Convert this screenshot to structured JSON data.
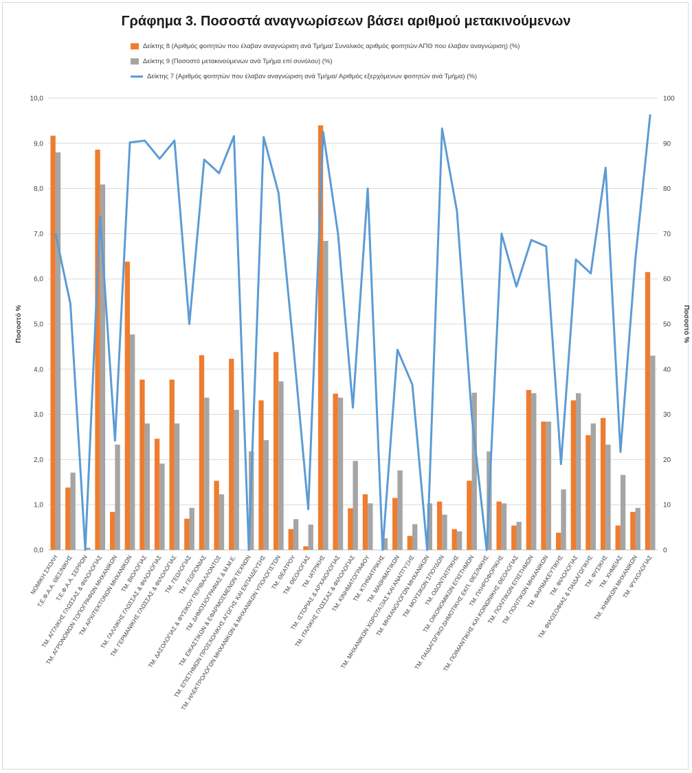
{
  "colors": {
    "ind8": "#ed7d31",
    "ind9": "#a5a5a5",
    "ind7": "#5b9bd5",
    "grid": "#d9d9d9"
  },
  "chart_data": {
    "type": "bar",
    "title": "Γράφημα 3. Ποσοστά αναγνωρίσεων βάσει αριθμού μετακινούμενων",
    "ylabel": "Ποσοστό %",
    "y2label": "Ποσοστό %",
    "ylim": [
      0,
      10
    ],
    "y2lim": [
      0,
      100
    ],
    "yticks": [
      "0,0",
      "1,0",
      "2,0",
      "3,0",
      "4,0",
      "5,0",
      "6,0",
      "7,0",
      "8,0",
      "9,0",
      "10,0"
    ],
    "y2ticks": [
      "0",
      "10",
      "20",
      "30",
      "40",
      "50",
      "60",
      "70",
      "80",
      "90",
      "100"
    ],
    "grid": true,
    "legend_position": "top",
    "categories": [
      "ΝΟΜΙΚΗ ΣΧΟΛΗ",
      "Τ.Ε.Φ.Α.Α. ΘΕΣ/ΝΙΚΗΣ",
      "Τ.Ε.Φ.Α.Α. ΣΕΡΡΩΝ",
      "ΤΜ. ΑΓΓΛΙΚΗΣ ΓΛΩΣΣΑΣ & ΦΙΛΟΛΟΓΙΑΣ",
      "ΤΜ. ΑΓΡΟΝΟΜΩΝ ΤΟΠΟΓΡΑΦΩΝ ΜΗΧΑΝΙΚΩΝ",
      "ΤΜ. ΑΡΧΙΤΕΚΤΟΝΩΝ ΜΗΧΑΝΙΚΩΝ",
      "ΤΜ. ΒΙΟΛΟΓΙΑΣ",
      "ΤΜ. ΓΑΛΛΙΚΗΣ ΓΛΩΣΣΑΣ & ΦΙΛΟΛΟΓΙΑΣ",
      "ΤΜ. ΓΕΡΜΑΝΙΚΗΣ ΓΛΩΣΣΑΣ & ΦΙΛΟΛΟΓΙΑΣ",
      "ΤΜ. ΓΕΩΛΟΓΙΑΣ",
      "ΤΜ. ΓΕΩΠΟΝΙΑΣ",
      "ΤΜ. ΔΑΣΟΛΟΓΙΑΣ & ΦΥΣΙΚΟΥ ΠΕΡΙΒΑΛΛΟΝΤΟΣ",
      "ΤΜ. ΔΗΜΟΣΙΟΓΡΑΦΙΑΣ & Μ.Μ.Ε.",
      "ΤΜ. ΕΙΚΑΣΤΙΚΩΝ & ΕΦΑΡΜΟΣΜΕΝΩΝ ΤΕΧΝΩΝ",
      "ΤΜ. ΕΠΙΣΤΗΜΩΝ ΠΡΟΣΧΟΛΙΚΗΣ ΑΓΩΓΗΣ ΚΑΙ ΕΚΠΑΙΔΕΥΣΗΣ",
      "ΤΜ. ΗΛΕΚΤΡΟΛΟΓΩΝ ΜΗΧΑΝΙΚΩΝ & ΜΗΧΑΝΙΚΩΝ ΥΠΟΛΟΓΙΣΤΩΝ",
      "ΤΜ. ΘΕΑΤΡΟΥ",
      "ΤΜ. ΘΕΟΛΟΓΙΑΣ",
      "ΤΜ. ΙΑΤΡΙΚΗΣ",
      "ΤΜ. ΙΣΤΟΡΙΑΣ & ΑΡΧΑΙΟΛΟΓΙΑΣ",
      "ΤΜ. ΙΤΑΛΙΚΗΣ ΓΛΩΣΣΑΣ & ΦΙΛΟΛΟΓΙΑΣ",
      "ΤΜ. ΚΙΝΗΜΑΤΟΓΡΑΦΟΥ",
      "ΤΜ. ΚΤΗΝΙΑΤΡΙΚΗΣ",
      "ΤΜ. ΜΑΘΗΜΑΤΙΚΩΝ",
      "ΤΜ. ΜΗΧΑΝΙΚΩΝ ΧΩΡΟΤΑΞΙΑΣ ΚΑΙ ΑΝΑΠΤΥΞΗΣ",
      "ΤΜ. ΜΗΧΑΝΟΛΟΓΩΝ ΜΗΧΑΝΙΚΩΝ",
      "ΤΜ. ΜΟΥΣΙΚΩΝ ΣΠΟΥΔΩΝ",
      "ΤΜ. ΟΔΟΝΤΙΑΤΡΙΚΗΣ",
      "ΤΜ. ΟΙΚΟΝΟΜΙΚΩΝ ΕΠΙΣΤΗΜΩΝ",
      "ΤΜ. ΠΑΙΔΑΓΩΓΙΚΟ ΔΗΜΟΤΙΚΗΣ ΕΚΠ. ΘΕΣ/ΝΙΚΗΣ",
      "ΤΜ. ΠΛΗΡΟΦΟΡΙΚΗΣ",
      "ΤΜ. ΠΟΙΜΑΝΤΙΚΗΣ ΚΑΙ ΚΟΙΝΩΝΙΚΗΣ ΘΕΟΛΟΓΙΑΣ",
      "ΤΜ. ΠΟΛΙΤΙΚΩΝ ΕΠΙΣΤΗΜΩΝ",
      "ΤΜ. ΠΟΛΙΤΙΚΩΝ ΜΗΧΑΝΙΚΩΝ",
      "ΤΜ. ΦΑΡΜΑΚΕΥΤΙΚΗΣ",
      "ΤΜ. ΦΙΛΟΛΟΓΙΑΣ",
      "ΤΜ. ΦΙΛΟΣΟΦΙΑΣ & ΠΑΙΔΑΓΩΓΙΚΗΣ",
      "ΤΜ. ΦΥΣΙΚΗΣ",
      "ΤΜ. ΧΗΜΕΙΑΣ",
      "ΤΜ. ΧΗΜΙΚΩΝ ΜΗΧΑΝΙΚΩΝ",
      "ΤΜ. ΨΥΧΟΛΟΓΙΑΣ"
    ],
    "series": [
      {
        "name": "Δείκτης 8 (Αριθμός φοιτητών που έλαβαν αναγνώριση ανά Τμήμα/ Συνολικός αριθμός φοιτητών ΑΠΘ που έλαβαν αναγνώριση) (%)",
        "type": "bar",
        "axis": "left",
        "color_key": "ind8",
        "values": [
          9.17,
          1.38,
          0.0,
          8.86,
          0.84,
          6.38,
          3.77,
          2.46,
          3.77,
          0.69,
          4.31,
          1.53,
          4.23,
          0.0,
          3.31,
          4.38,
          0.46,
          0.08,
          9.4,
          3.46,
          0.92,
          1.23,
          0.0,
          1.15,
          0.31,
          0.0,
          1.07,
          0.46,
          1.53,
          0.0,
          1.07,
          0.54,
          3.54,
          2.84,
          0.38,
          3.31,
          2.54,
          2.92,
          0.54,
          0.84,
          6.15
        ]
      },
      {
        "name": "Δείκτης 9 (Ποσοστό μετακινούμενων ανά Τμήμα επί συνόλου) (%)",
        "type": "bar",
        "axis": "left",
        "color_key": "ind9",
        "values": [
          8.8,
          1.71,
          0.05,
          8.09,
          2.33,
          4.77,
          2.8,
          1.91,
          2.8,
          0.93,
          3.37,
          1.23,
          3.1,
          2.18,
          2.43,
          3.73,
          0.68,
          0.56,
          6.84,
          3.37,
          1.97,
          1.03,
          0.26,
          1.76,
          0.57,
          1.03,
          0.78,
          0.41,
          3.48,
          2.18,
          1.03,
          0.62,
          3.47,
          2.84,
          1.34,
          3.47,
          2.8,
          2.33,
          1.66,
          0.93,
          4.3
        ]
      },
      {
        "name": "Δείκτης 7 (Αριθμός φοιτητών που έλαβαν αναγνώριση ανά Τμήμα/ Αριθμός εξερχόμενων φοιτητών ανά Τμήμα) (%)",
        "type": "line",
        "axis": "right",
        "color_key": "ind7",
        "values": [
          70.0,
          54.5,
          0.0,
          73.8,
          24.2,
          90.2,
          90.6,
          86.6,
          90.6,
          50.0,
          86.4,
          83.4,
          91.6,
          0.0,
          91.4,
          79.0,
          45.0,
          9.0,
          92.5,
          70.0,
          31.5,
          80.0,
          0.0,
          44.3,
          36.6,
          0.0,
          93.3,
          75.0,
          29.6,
          0.0,
          70.0,
          58.3,
          68.6,
          67.2,
          19.0,
          64.3,
          61.2,
          84.6,
          21.7,
          64.3,
          96.4
        ]
      }
    ]
  }
}
